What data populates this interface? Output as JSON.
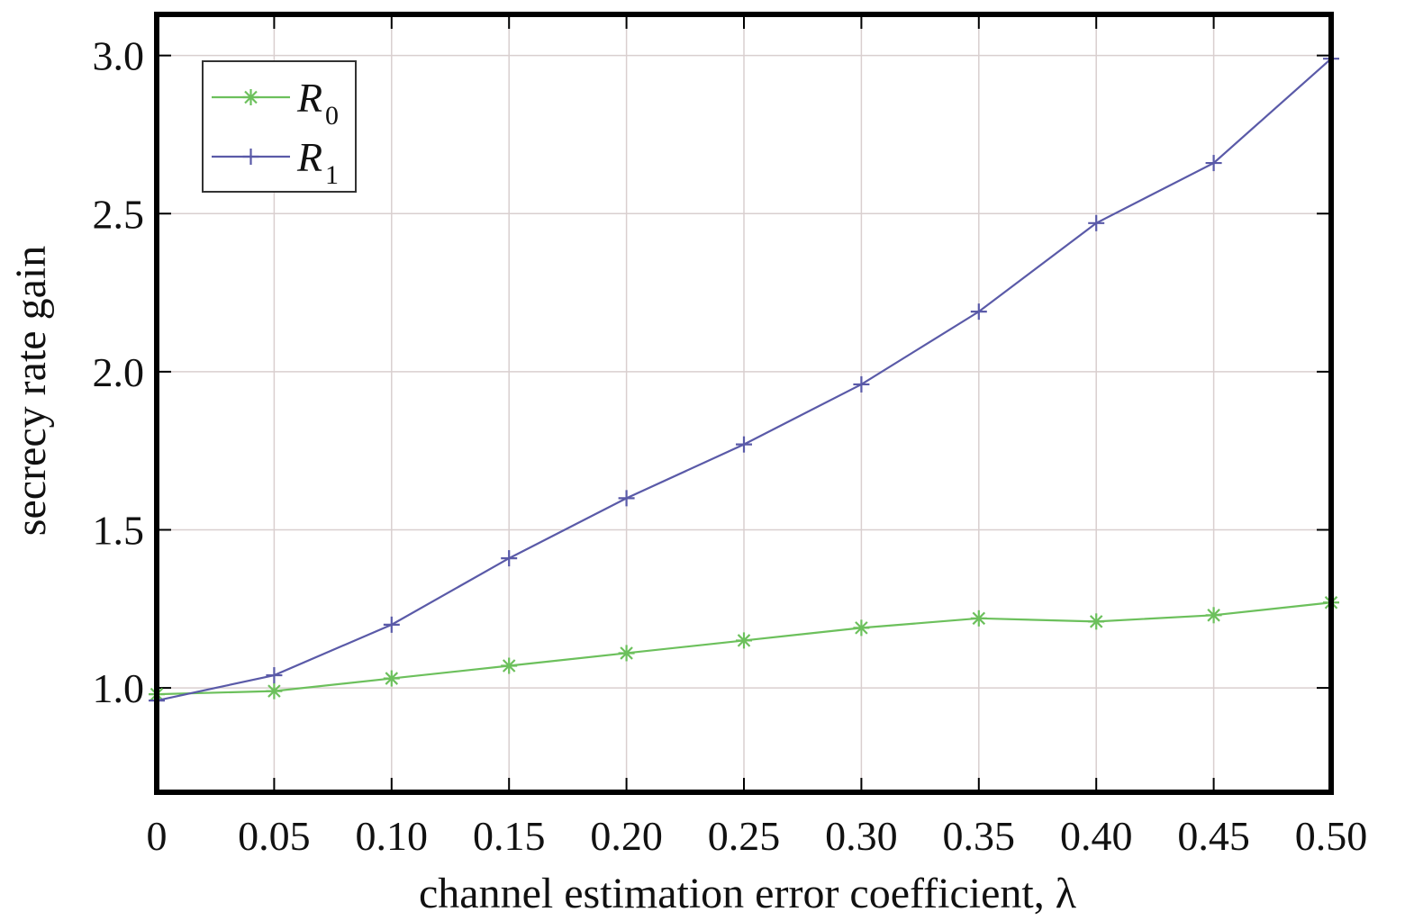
{
  "chart_data": {
    "type": "line",
    "xlabel": "channel estimation error coefficient, λ",
    "ylabel": "secrecy rate gain",
    "x": [
      0,
      0.05,
      0.1,
      0.15,
      0.2,
      0.25,
      0.3,
      0.35,
      0.4,
      0.45,
      0.5
    ],
    "x_tick_labels": [
      "0",
      "0.05",
      "0.10",
      "0.15",
      "0.20",
      "0.25",
      "0.30",
      "0.35",
      "0.40",
      "0.45",
      "0.50"
    ],
    "y_ticks": [
      1.0,
      1.5,
      2.0,
      2.5,
      3.0
    ],
    "y_tick_labels": [
      "1.0",
      "1.5",
      "2.0",
      "2.5",
      "3.0"
    ],
    "xlim": [
      0,
      0.5
    ],
    "ylim": [
      0.67,
      3.13
    ],
    "grid": true,
    "legend_position": "top-left",
    "series": [
      {
        "name": "R",
        "subscript": "0",
        "marker": "asterisk",
        "color": "#6cc05c",
        "values": [
          0.98,
          0.99,
          1.03,
          1.07,
          1.11,
          1.15,
          1.19,
          1.22,
          1.21,
          1.23,
          1.27
        ]
      },
      {
        "name": "R",
        "subscript": "1",
        "marker": "plus",
        "color": "#5a5aa8",
        "values": [
          0.96,
          1.04,
          1.2,
          1.41,
          1.6,
          1.77,
          1.96,
          2.19,
          2.47,
          2.66,
          2.99
        ]
      }
    ]
  }
}
